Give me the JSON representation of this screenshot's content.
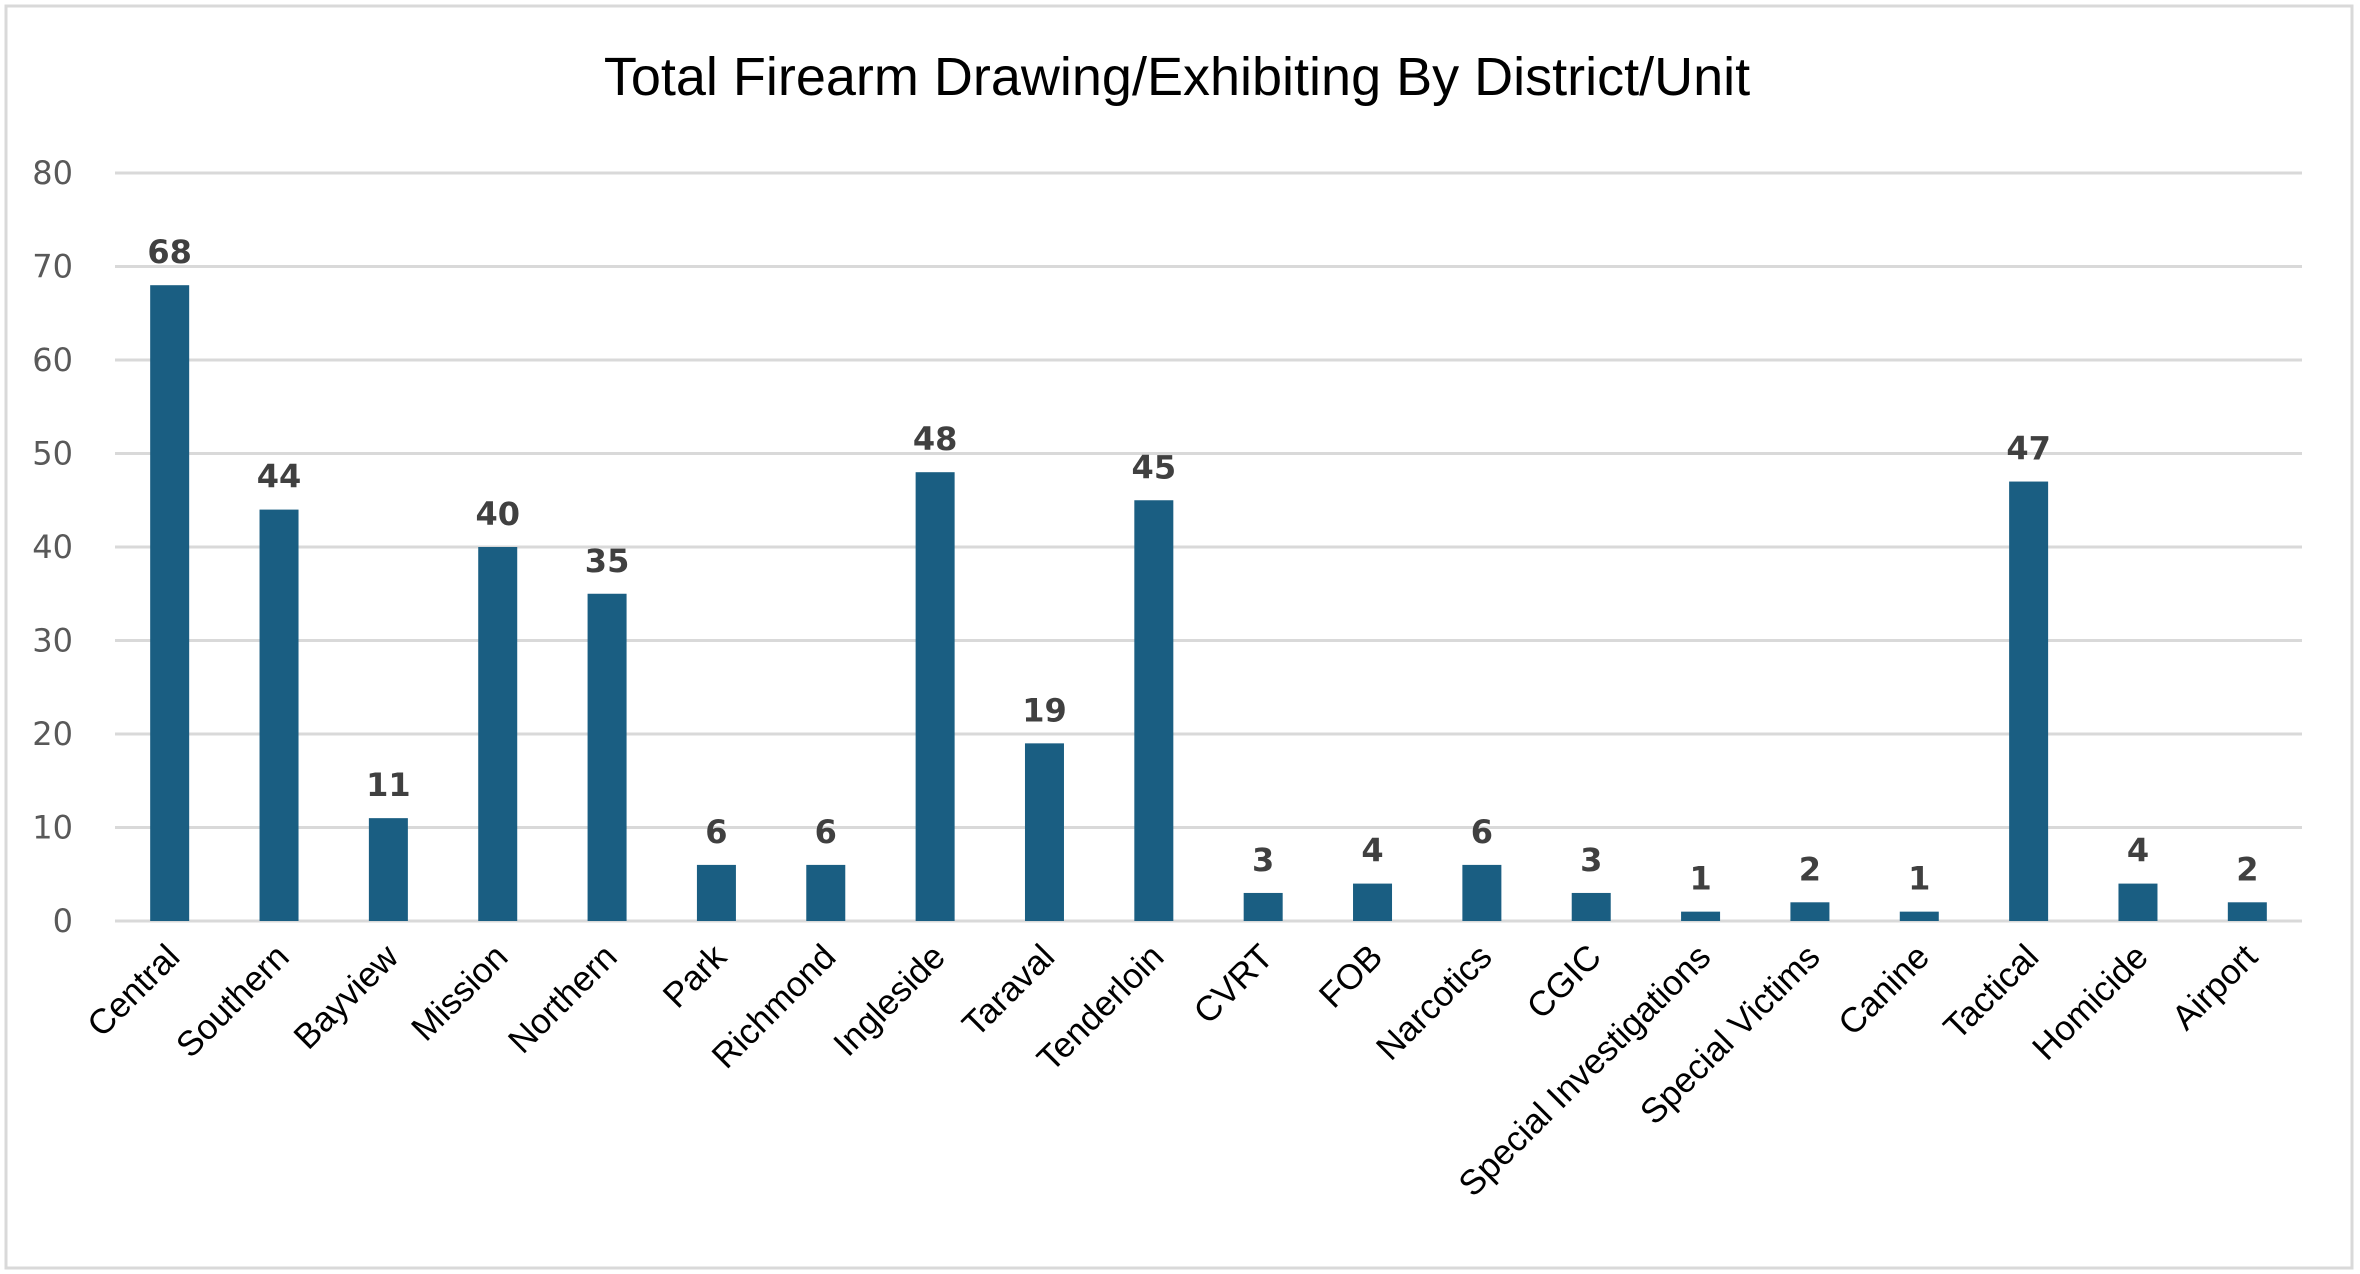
{
  "chart_data": {
    "type": "bar",
    "title": "Total Firearm Drawing/Exhibiting By District/Unit",
    "xlabel": "",
    "ylabel": "",
    "ylim": [
      0,
      80
    ],
    "yticks": [
      0,
      10,
      20,
      30,
      40,
      50,
      60,
      70,
      80
    ],
    "grid": true,
    "legend": "none",
    "bar_color": "#1a5e82",
    "categories": [
      "Central",
      "Southern",
      "Bayview",
      "Mission",
      "Northern",
      "Park",
      "Richmond",
      "Ingleside",
      "Taraval",
      "Tenderloin",
      "CVRT",
      "FOB",
      "Narcotics",
      "CGIC",
      "Special Investigations",
      "Special Victims",
      "Canine",
      "Tactical",
      "Homicide",
      "Airport"
    ],
    "values": [
      68,
      44,
      11,
      40,
      35,
      6,
      6,
      48,
      19,
      45,
      3,
      4,
      6,
      3,
      1,
      2,
      1,
      47,
      4,
      2
    ]
  }
}
